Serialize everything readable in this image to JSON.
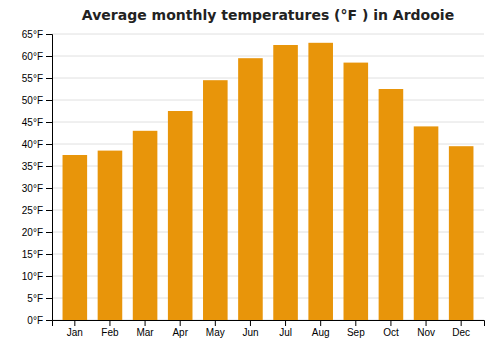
{
  "chart_data": {
    "type": "bar",
    "title": "Average monthly temperatures (°F ) in Ardooie",
    "categories": [
      "Jan",
      "Feb",
      "Mar",
      "Apr",
      "May",
      "Jun",
      "Jul",
      "Aug",
      "Sep",
      "Oct",
      "Nov",
      "Dec"
    ],
    "values": [
      37.5,
      38.5,
      43.0,
      47.5,
      54.5,
      59.5,
      62.5,
      63.0,
      58.5,
      52.5,
      44.0,
      39.5
    ],
    "color": "#E8950A",
    "ylim": [
      0,
      65
    ],
    "yticks": [
      {
        "value": 0,
        "label": "0°F"
      },
      {
        "value": 5,
        "label": "5°F"
      },
      {
        "value": 10,
        "label": "10°F"
      },
      {
        "value": 15,
        "label": "15°F"
      },
      {
        "value": 20,
        "label": "20°F"
      },
      {
        "value": 25,
        "label": "25°F"
      },
      {
        "value": 30,
        "label": "30°F"
      },
      {
        "value": 35,
        "label": "35°F"
      },
      {
        "value": 40,
        "label": "40°F"
      },
      {
        "value": 45,
        "label": "45°F"
      },
      {
        "value": 50,
        "label": "50°F"
      },
      {
        "value": 55,
        "label": "55°F"
      },
      {
        "value": 60,
        "label": "60°F"
      },
      {
        "value": 65,
        "label": "65°F"
      }
    ],
    "grid": true
  }
}
